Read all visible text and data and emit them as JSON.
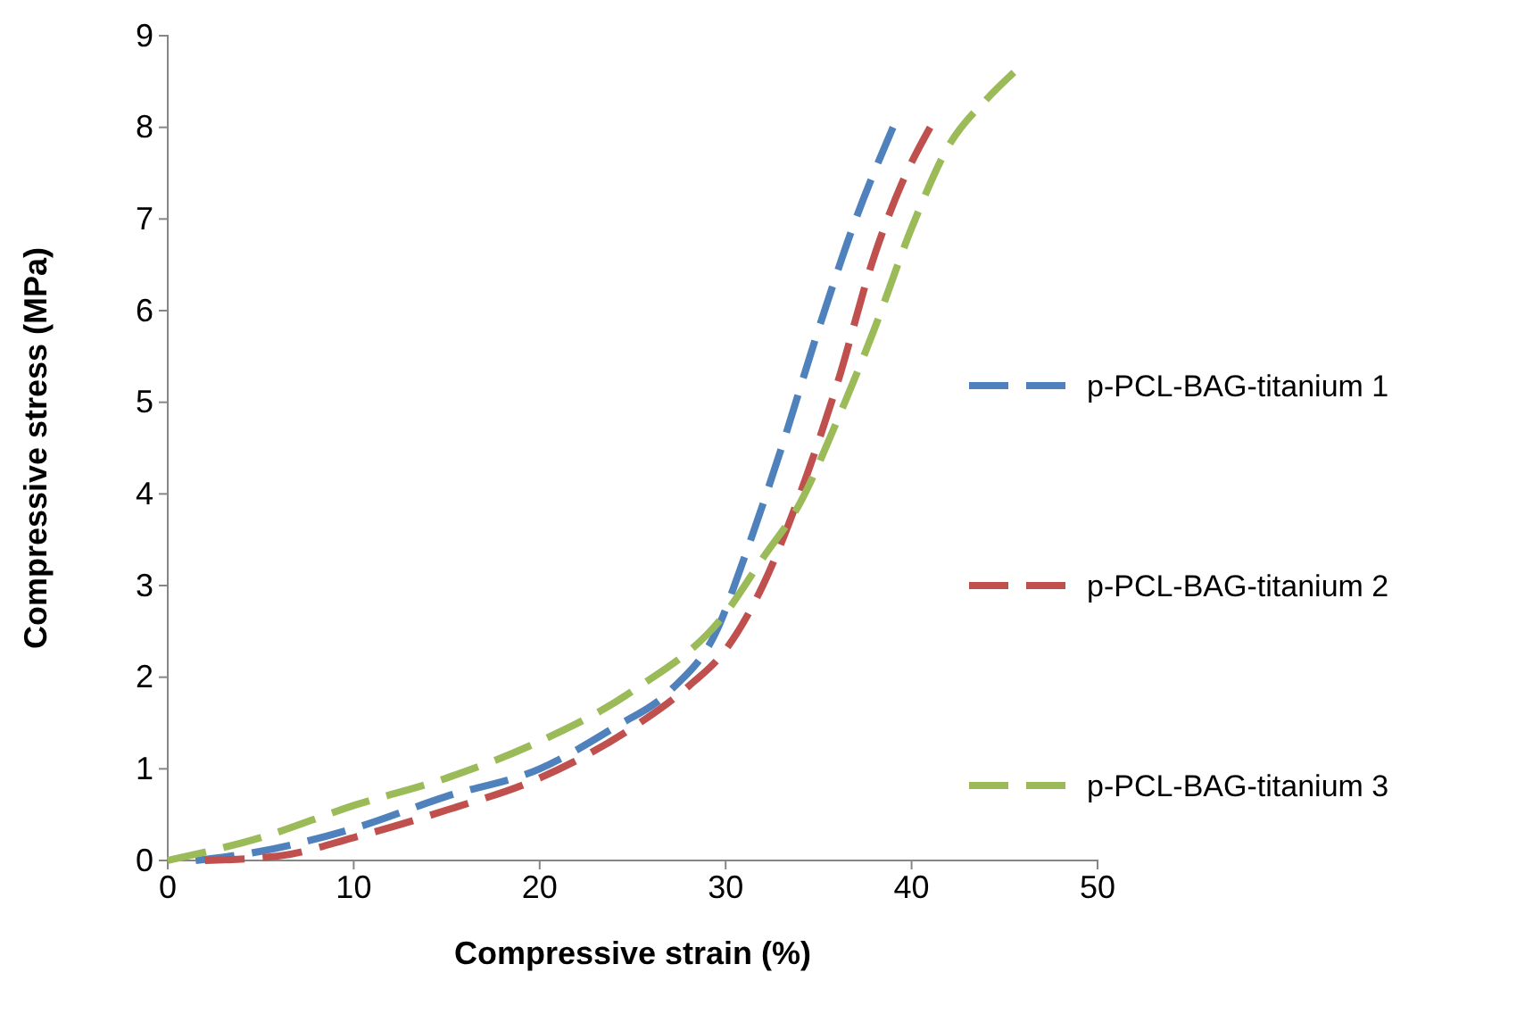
{
  "chart_data": {
    "type": "line",
    "xlabel": "Compressive strain (%)",
    "ylabel": "Compressive stress (MPa)",
    "xlim": [
      0,
      50
    ],
    "xticks": [
      0,
      10,
      20,
      30,
      40,
      50
    ],
    "ylim": [
      0,
      9
    ],
    "yticks": [
      0,
      1,
      2,
      3,
      4,
      5,
      6,
      7,
      8,
      9
    ],
    "grid": false,
    "legend": "right",
    "line_style": "dashed",
    "marker": "none",
    "series": [
      {
        "name": "p-PCL-BAG-titanium 1",
        "color": "#4f81bd",
        "x": [
          1.5,
          5,
          10,
          15,
          20,
          24,
          27,
          29.5,
          31,
          33,
          35,
          37,
          39
        ],
        "values": [
          0,
          0.1,
          0.35,
          0.7,
          1.0,
          1.45,
          1.85,
          2.5,
          3.3,
          4.5,
          5.8,
          7,
          8
        ]
      },
      {
        "name": "p-PCL-BAG-titanium 2",
        "color": "#c0504d",
        "x": [
          2,
          6,
          10,
          15,
          20,
          25,
          28,
          30,
          32,
          34,
          36,
          38,
          39.5,
          41
        ],
        "values": [
          0,
          0.05,
          0.25,
          0.55,
          0.9,
          1.45,
          1.9,
          2.3,
          3.0,
          4,
          5.2,
          6.6,
          7.4,
          8
        ]
      },
      {
        "name": "p-PCL-BAG-titanium 3",
        "color": "#9bbb59",
        "x": [
          0,
          5,
          10,
          15,
          20,
          25,
          30,
          32,
          34,
          36,
          38,
          40,
          42,
          44,
          45.5
        ],
        "values": [
          0,
          0.25,
          0.6,
          0.9,
          1.3,
          1.85,
          2.7,
          3.3,
          3.9,
          4.8,
          5.8,
          6.9,
          7.8,
          8.3,
          8.6
        ]
      }
    ]
  }
}
